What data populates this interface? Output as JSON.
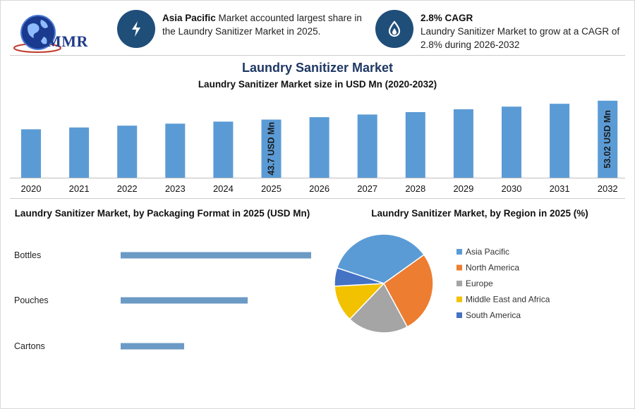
{
  "brand": {
    "logo_text": "MMR"
  },
  "highlights": [
    {
      "icon": "lightning-icon",
      "bold": "Asia Pacific",
      "text": " Market accounted largest share in the Laundry Sanitizer Market in 2025."
    },
    {
      "icon": "flame-drop-icon",
      "bold": "2.8% CAGR",
      "text": "Laundry Sanitizer Market to grow at a CAGR of 2.8% during 2026-2032"
    }
  ],
  "title": "Laundry Sanitizer Market",
  "colors": {
    "bar": "#5b9bd5",
    "hbar": "#6b9ac4",
    "title": "#1f3864",
    "circle": "#1f4e79"
  },
  "chart_data": [
    {
      "type": "bar",
      "title": "Laundry Sanitizer Market size in USD Mn (2020-2032)",
      "categories": [
        "2020",
        "2021",
        "2022",
        "2023",
        "2024",
        "2025",
        "2026",
        "2027",
        "2028",
        "2029",
        "2030",
        "2031",
        "2032"
      ],
      "values": [
        38.9,
        39.8,
        40.7,
        41.7,
        42.7,
        43.7,
        44.9,
        46.2,
        47.4,
        48.8,
        50.1,
        51.5,
        53.02
      ],
      "data_labels": [
        {
          "index": 5,
          "text": "43.7 USD Mn"
        },
        {
          "index": 12,
          "text": "53.02 USD Mn"
        }
      ],
      "ylim": [
        15,
        54
      ]
    },
    {
      "type": "bar",
      "orientation": "horizontal",
      "title": "Laundry Sanitizer Market, by Packaging Format in 2025 (USD Mn)",
      "categories": [
        "Bottles",
        "Pouches",
        "Cartons"
      ],
      "values": [
        27,
        18,
        9
      ],
      "xlim": [
        0,
        27
      ]
    },
    {
      "type": "pie",
      "title": "Laundry Sanitizer Market, by Region in 2025 (%)",
      "labels": [
        "Asia Pacific",
        "North America",
        "Europe",
        "Middle East and Africa",
        "South America"
      ],
      "values": [
        35,
        27,
        20,
        12,
        6
      ],
      "colors": [
        "#5b9bd5",
        "#ed7d31",
        "#a5a5a5",
        "#f2c100",
        "#4472c4"
      ],
      "legend": "right"
    }
  ]
}
